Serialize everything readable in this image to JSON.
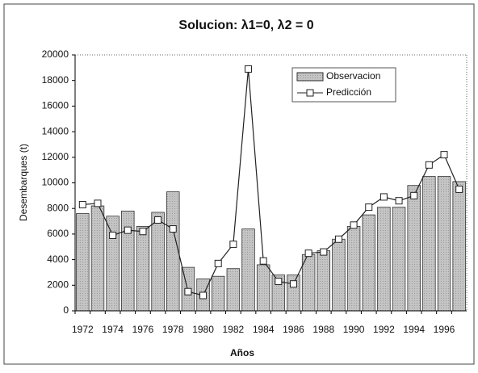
{
  "chart_data": {
    "type": "bar_line",
    "title": "Solucion: λ1=0, λ2 = 0",
    "xlabel": "Años",
    "ylabel": "Desembarques (t)",
    "categories": [
      "1972",
      null,
      "1974",
      null,
      "1976",
      null,
      "1978",
      null,
      "1980",
      null,
      "1982",
      null,
      "1984",
      null,
      "1986",
      null,
      "1988",
      null,
      "1990",
      null,
      "1992",
      null,
      "1994",
      null,
      "1996",
      null
    ],
    "series": [
      {
        "name": "Observacion",
        "type": "bar",
        "color": "#bdbdbd",
        "values": [
          7600,
          8200,
          7400,
          7800,
          6600,
          7700,
          9300,
          3400,
          2500,
          2700,
          3300,
          6400,
          3600,
          2800,
          2800,
          4400,
          4700,
          5600,
          6600,
          7500,
          8100,
          8100,
          9800,
          10500,
          10500,
          10100
        ]
      },
      {
        "name": "Predicción",
        "type": "line",
        "color": "#222222",
        "values": [
          8300,
          8400,
          5900,
          6300,
          6200,
          7100,
          6400,
          1500,
          1200,
          3700,
          5200,
          18900,
          3900,
          2300,
          2100,
          4500,
          4600,
          5600,
          6700,
          8100,
          8900,
          8600,
          9000,
          11400,
          12200,
          9500
        ]
      }
    ],
    "ylim": [
      0,
      20000
    ],
    "yticks": [
      0,
      2000,
      4000,
      6000,
      8000,
      10000,
      12000,
      14000,
      16000,
      18000,
      20000
    ],
    "legend": "top-right"
  }
}
